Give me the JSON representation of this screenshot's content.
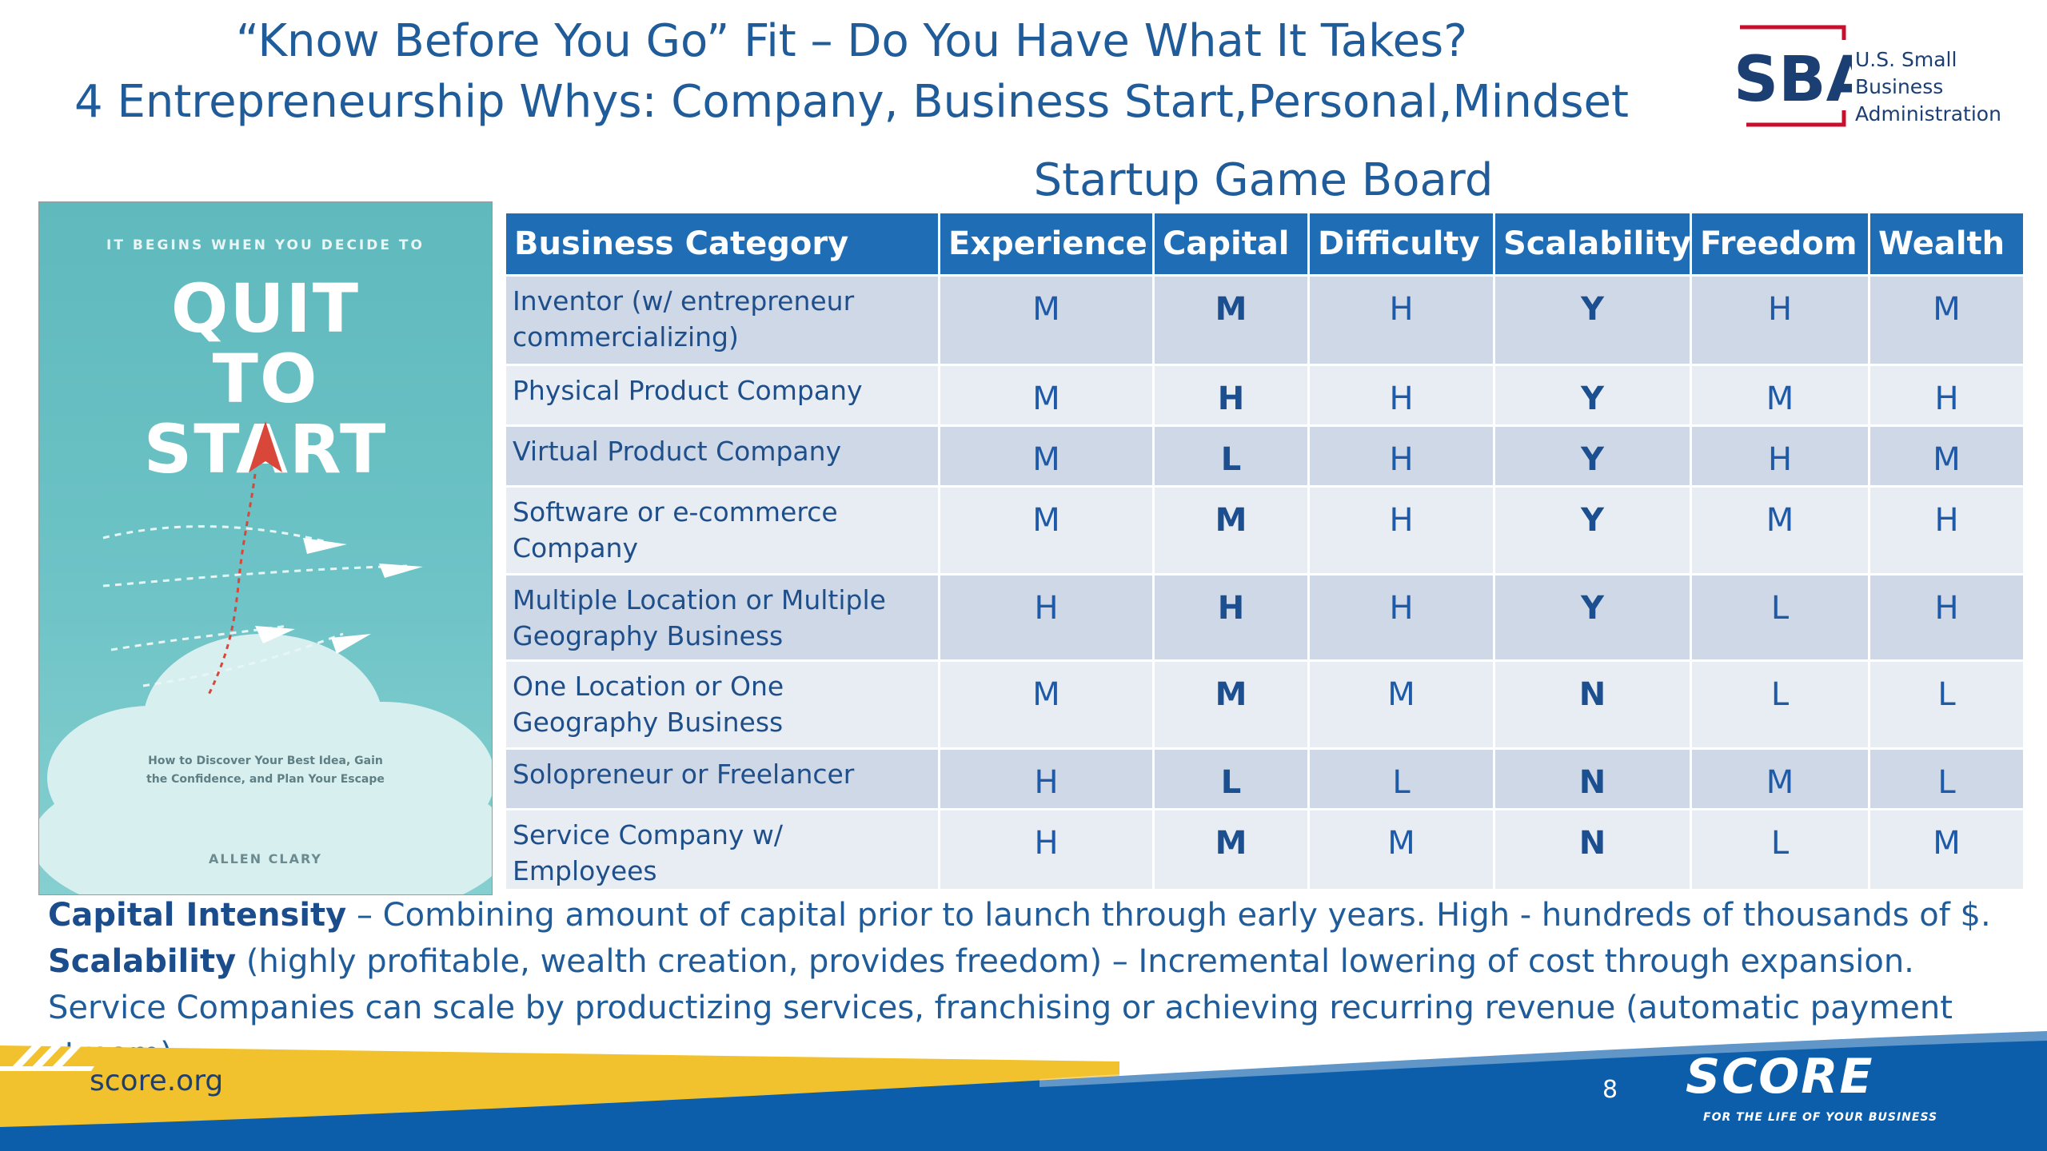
{
  "header": {
    "title_line1": "“Know Before You Go” Fit – Do You Have What It Takes?",
    "title_line2": "4 Entrepreneurship Whys: Company, Business Start,Personal,Mindset"
  },
  "sba_logo": {
    "mark": "SBA",
    "line1": "U.S. Small Business",
    "line2": "Administration",
    "colors": {
      "blue": "#1c3f73",
      "red": "#c8102e"
    }
  },
  "book": {
    "tagline": "IT BEGINS WHEN YOU DECIDE TO",
    "title_line1": "QUIT",
    "title_line2": "TO",
    "title_line3": "START",
    "subtitle": "How to Discover Your Best Idea, Gain the Confidence, and Plan Your Escape",
    "author": "ALLEN CLARY"
  },
  "board": {
    "heading": "Startup Game Board",
    "columns": [
      "Business Category",
      "Experience",
      "Capital",
      "Difficulty",
      "Scalability",
      "Freedom",
      "Wealth"
    ],
    "rows": [
      {
        "category": "Inventor (w/ entrepreneur commercializing)",
        "experience": "M",
        "capital": "M",
        "difficulty": "H",
        "scalability": "Y",
        "freedom": "H",
        "wealth": "M"
      },
      {
        "category": "Physical Product Company",
        "experience": "M",
        "capital": "H",
        "difficulty": "H",
        "scalability": "Y",
        "freedom": "M",
        "wealth": "H"
      },
      {
        "category": "Virtual Product Company",
        "experience": "M",
        "capital": "L",
        "difficulty": "H",
        "scalability": "Y",
        "freedom": "H",
        "wealth": "M"
      },
      {
        "category": "Software or e-commerce Company",
        "experience": "M",
        "capital": "M",
        "difficulty": "H",
        "scalability": "Y",
        "freedom": "M",
        "wealth": "H"
      },
      {
        "category": "Multiple Location or Multiple Geography Business",
        "experience": "H",
        "capital": "H",
        "difficulty": "H",
        "scalability": "Y",
        "freedom": "L",
        "wealth": "H"
      },
      {
        "category": "One Location or One Geography Business",
        "experience": "M",
        "capital": "M",
        "difficulty": "M",
        "scalability": "N",
        "freedom": "L",
        "wealth": "L"
      },
      {
        "category": "Solopreneur or Freelancer",
        "experience": "H",
        "capital": "L",
        "difficulty": "L",
        "scalability": "N",
        "freedom": "M",
        "wealth": "L"
      },
      {
        "category": "Service Company w/ Employees",
        "experience": "H",
        "capital": "M",
        "difficulty": "M",
        "scalability": "N",
        "freedom": "L",
        "wealth": "M"
      }
    ],
    "colors": {
      "header": "#1f6db5",
      "row_dark": "#cfd8e7",
      "row_light": "#e8ecf3"
    }
  },
  "notes": {
    "capital_term": "Capital Intensity",
    "capital_text": " – Combining amount of capital prior to launch through early years. High - hundreds of thousands of $.",
    "scalability_term": "Scalability",
    "scalability_text": " (highly profitable, wealth creation, provides freedom) –  Incremental lowering of cost through expansion. Service Companies can scale by productizing services, franchising or achieving recurring revenue (automatic payment stream)."
  },
  "footer": {
    "url": "score.org",
    "page_number": "8",
    "logo": "SCORE",
    "tagline": "FOR THE LIFE OF YOUR BUSINESS",
    "colors": {
      "yellow": "#f2c12e",
      "blue": "#0c5eab"
    }
  }
}
